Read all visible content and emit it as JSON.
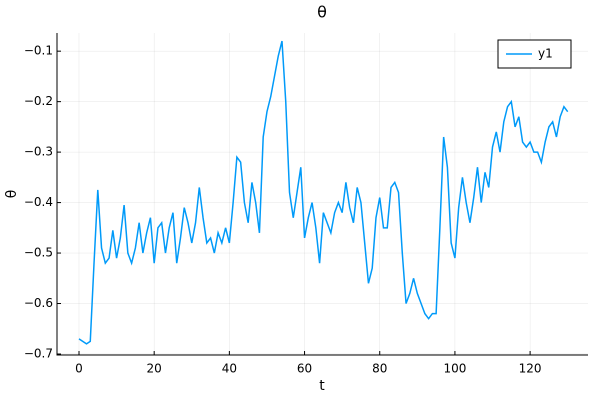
{
  "chart_data": {
    "type": "line",
    "title": "θ",
    "x_label": "t",
    "y_label": "θ",
    "x": [
      0,
      1,
      2,
      3,
      4,
      5,
      6,
      7,
      8,
      9,
      10,
      11,
      12,
      13,
      14,
      15,
      16,
      17,
      18,
      19,
      20,
      21,
      22,
      23,
      24,
      25,
      26,
      27,
      28,
      29,
      30,
      31,
      32,
      33,
      34,
      35,
      36,
      37,
      38,
      39,
      40,
      41,
      42,
      43,
      44,
      45,
      46,
      47,
      48,
      49,
      50,
      51,
      52,
      53,
      54,
      55,
      56,
      57,
      58,
      59,
      60,
      61,
      62,
      63,
      64,
      65,
      66,
      67,
      68,
      69,
      70,
      71,
      72,
      73,
      74,
      75,
      76,
      77,
      78,
      79,
      80,
      81,
      82,
      83,
      84,
      85,
      86,
      87,
      88,
      89,
      90,
      91,
      92,
      93,
      94,
      95,
      96,
      97,
      98,
      99,
      100,
      101,
      102,
      103,
      104,
      105,
      106,
      107,
      108,
      109,
      110,
      111,
      112,
      113,
      114,
      115,
      116,
      117,
      118,
      119,
      120,
      121,
      122,
      123,
      124,
      125,
      126,
      127,
      128,
      129,
      130
    ],
    "series": [
      {
        "name": "y1",
        "color": "#009af9",
        "values": [
          -0.67,
          -0.675,
          -0.68,
          -0.675,
          -0.52,
          -0.375,
          -0.49,
          -0.52,
          -0.51,
          -0.455,
          -0.51,
          -0.47,
          -0.405,
          -0.5,
          -0.52,
          -0.49,
          -0.44,
          -0.5,
          -0.46,
          -0.43,
          -0.52,
          -0.45,
          -0.44,
          -0.5,
          -0.45,
          -0.42,
          -0.52,
          -0.47,
          -0.41,
          -0.44,
          -0.48,
          -0.44,
          -0.37,
          -0.43,
          -0.48,
          -0.47,
          -0.5,
          -0.46,
          -0.48,
          -0.45,
          -0.48,
          -0.4,
          -0.31,
          -0.32,
          -0.4,
          -0.44,
          -0.36,
          -0.4,
          -0.46,
          -0.27,
          -0.22,
          -0.19,
          -0.15,
          -0.11,
          -0.08,
          -0.2,
          -0.38,
          -0.43,
          -0.38,
          -0.33,
          -0.47,
          -0.43,
          -0.4,
          -0.45,
          -0.52,
          -0.42,
          -0.44,
          -0.46,
          -0.42,
          -0.4,
          -0.42,
          -0.36,
          -0.41,
          -0.44,
          -0.37,
          -0.4,
          -0.48,
          -0.56,
          -0.53,
          -0.43,
          -0.39,
          -0.45,
          -0.45,
          -0.37,
          -0.36,
          -0.38,
          -0.5,
          -0.6,
          -0.58,
          -0.55,
          -0.58,
          -0.6,
          -0.62,
          -0.63,
          -0.62,
          -0.62,
          -0.45,
          -0.27,
          -0.33,
          -0.48,
          -0.51,
          -0.41,
          -0.35,
          -0.4,
          -0.44,
          -0.39,
          -0.33,
          -0.4,
          -0.34,
          -0.37,
          -0.29,
          -0.26,
          -0.3,
          -0.24,
          -0.21,
          -0.2,
          -0.25,
          -0.23,
          -0.28,
          -0.29,
          -0.28,
          -0.3,
          -0.3,
          -0.32,
          -0.28,
          -0.25,
          -0.24,
          -0.27,
          -0.23,
          -0.21,
          -0.22
        ]
      }
    ],
    "xlim": [
      -5.85,
      135.4
    ],
    "ylim": [
      -0.702,
      -0.064
    ],
    "xticks": [
      0,
      20,
      40,
      60,
      80,
      100,
      120
    ],
    "yticks": [
      {
        "value": -0.7,
        "label": "−0.7"
      },
      {
        "value": -0.6,
        "label": "−0.6"
      },
      {
        "value": -0.5,
        "label": "−0.5"
      },
      {
        "value": -0.4,
        "label": "−0.4"
      },
      {
        "value": -0.3,
        "label": "−0.3"
      },
      {
        "value": -0.2,
        "label": "−0.2"
      },
      {
        "value": -0.1,
        "label": "−0.1"
      }
    ],
    "grid": true,
    "legend_position": "top-right"
  }
}
